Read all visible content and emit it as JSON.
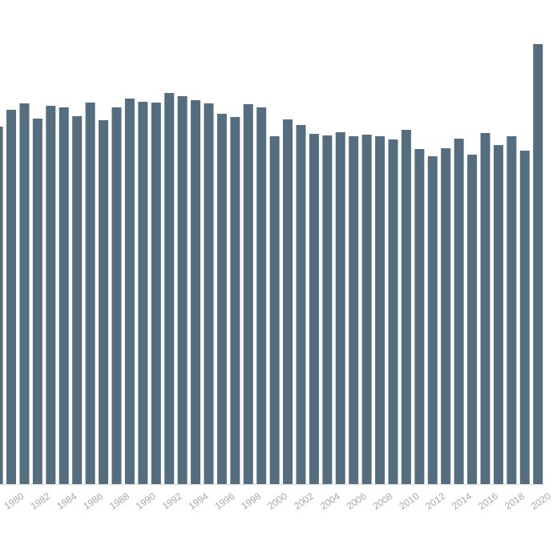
{
  "chart_data": {
    "type": "bar",
    "categories": [
      null,
      "1980",
      null,
      "1982",
      null,
      "1984",
      null,
      "1986",
      null,
      "1988",
      null,
      "1990",
      null,
      "1992",
      null,
      "1994",
      null,
      "1996",
      null,
      "1998",
      null,
      "2000",
      null,
      "2002",
      null,
      "2004",
      null,
      "2006",
      null,
      "2008",
      null,
      "2010",
      null,
      "2012",
      null,
      "2014",
      null,
      "2016",
      null,
      "2018",
      null,
      "2020"
    ],
    "values": [
      446,
      467,
      475,
      456,
      472,
      470,
      459,
      476,
      454,
      470,
      481,
      477,
      476,
      488,
      484,
      479,
      475,
      462,
      458,
      474,
      470,
      434,
      455,
      448,
      437,
      435,
      439,
      434,
      436,
      434,
      430,
      442,
      418,
      409,
      419,
      431,
      411,
      438,
      423,
      434,
      416,
      549
    ],
    "color": "#546e80",
    "ylim": [
      0,
      604
    ]
  }
}
